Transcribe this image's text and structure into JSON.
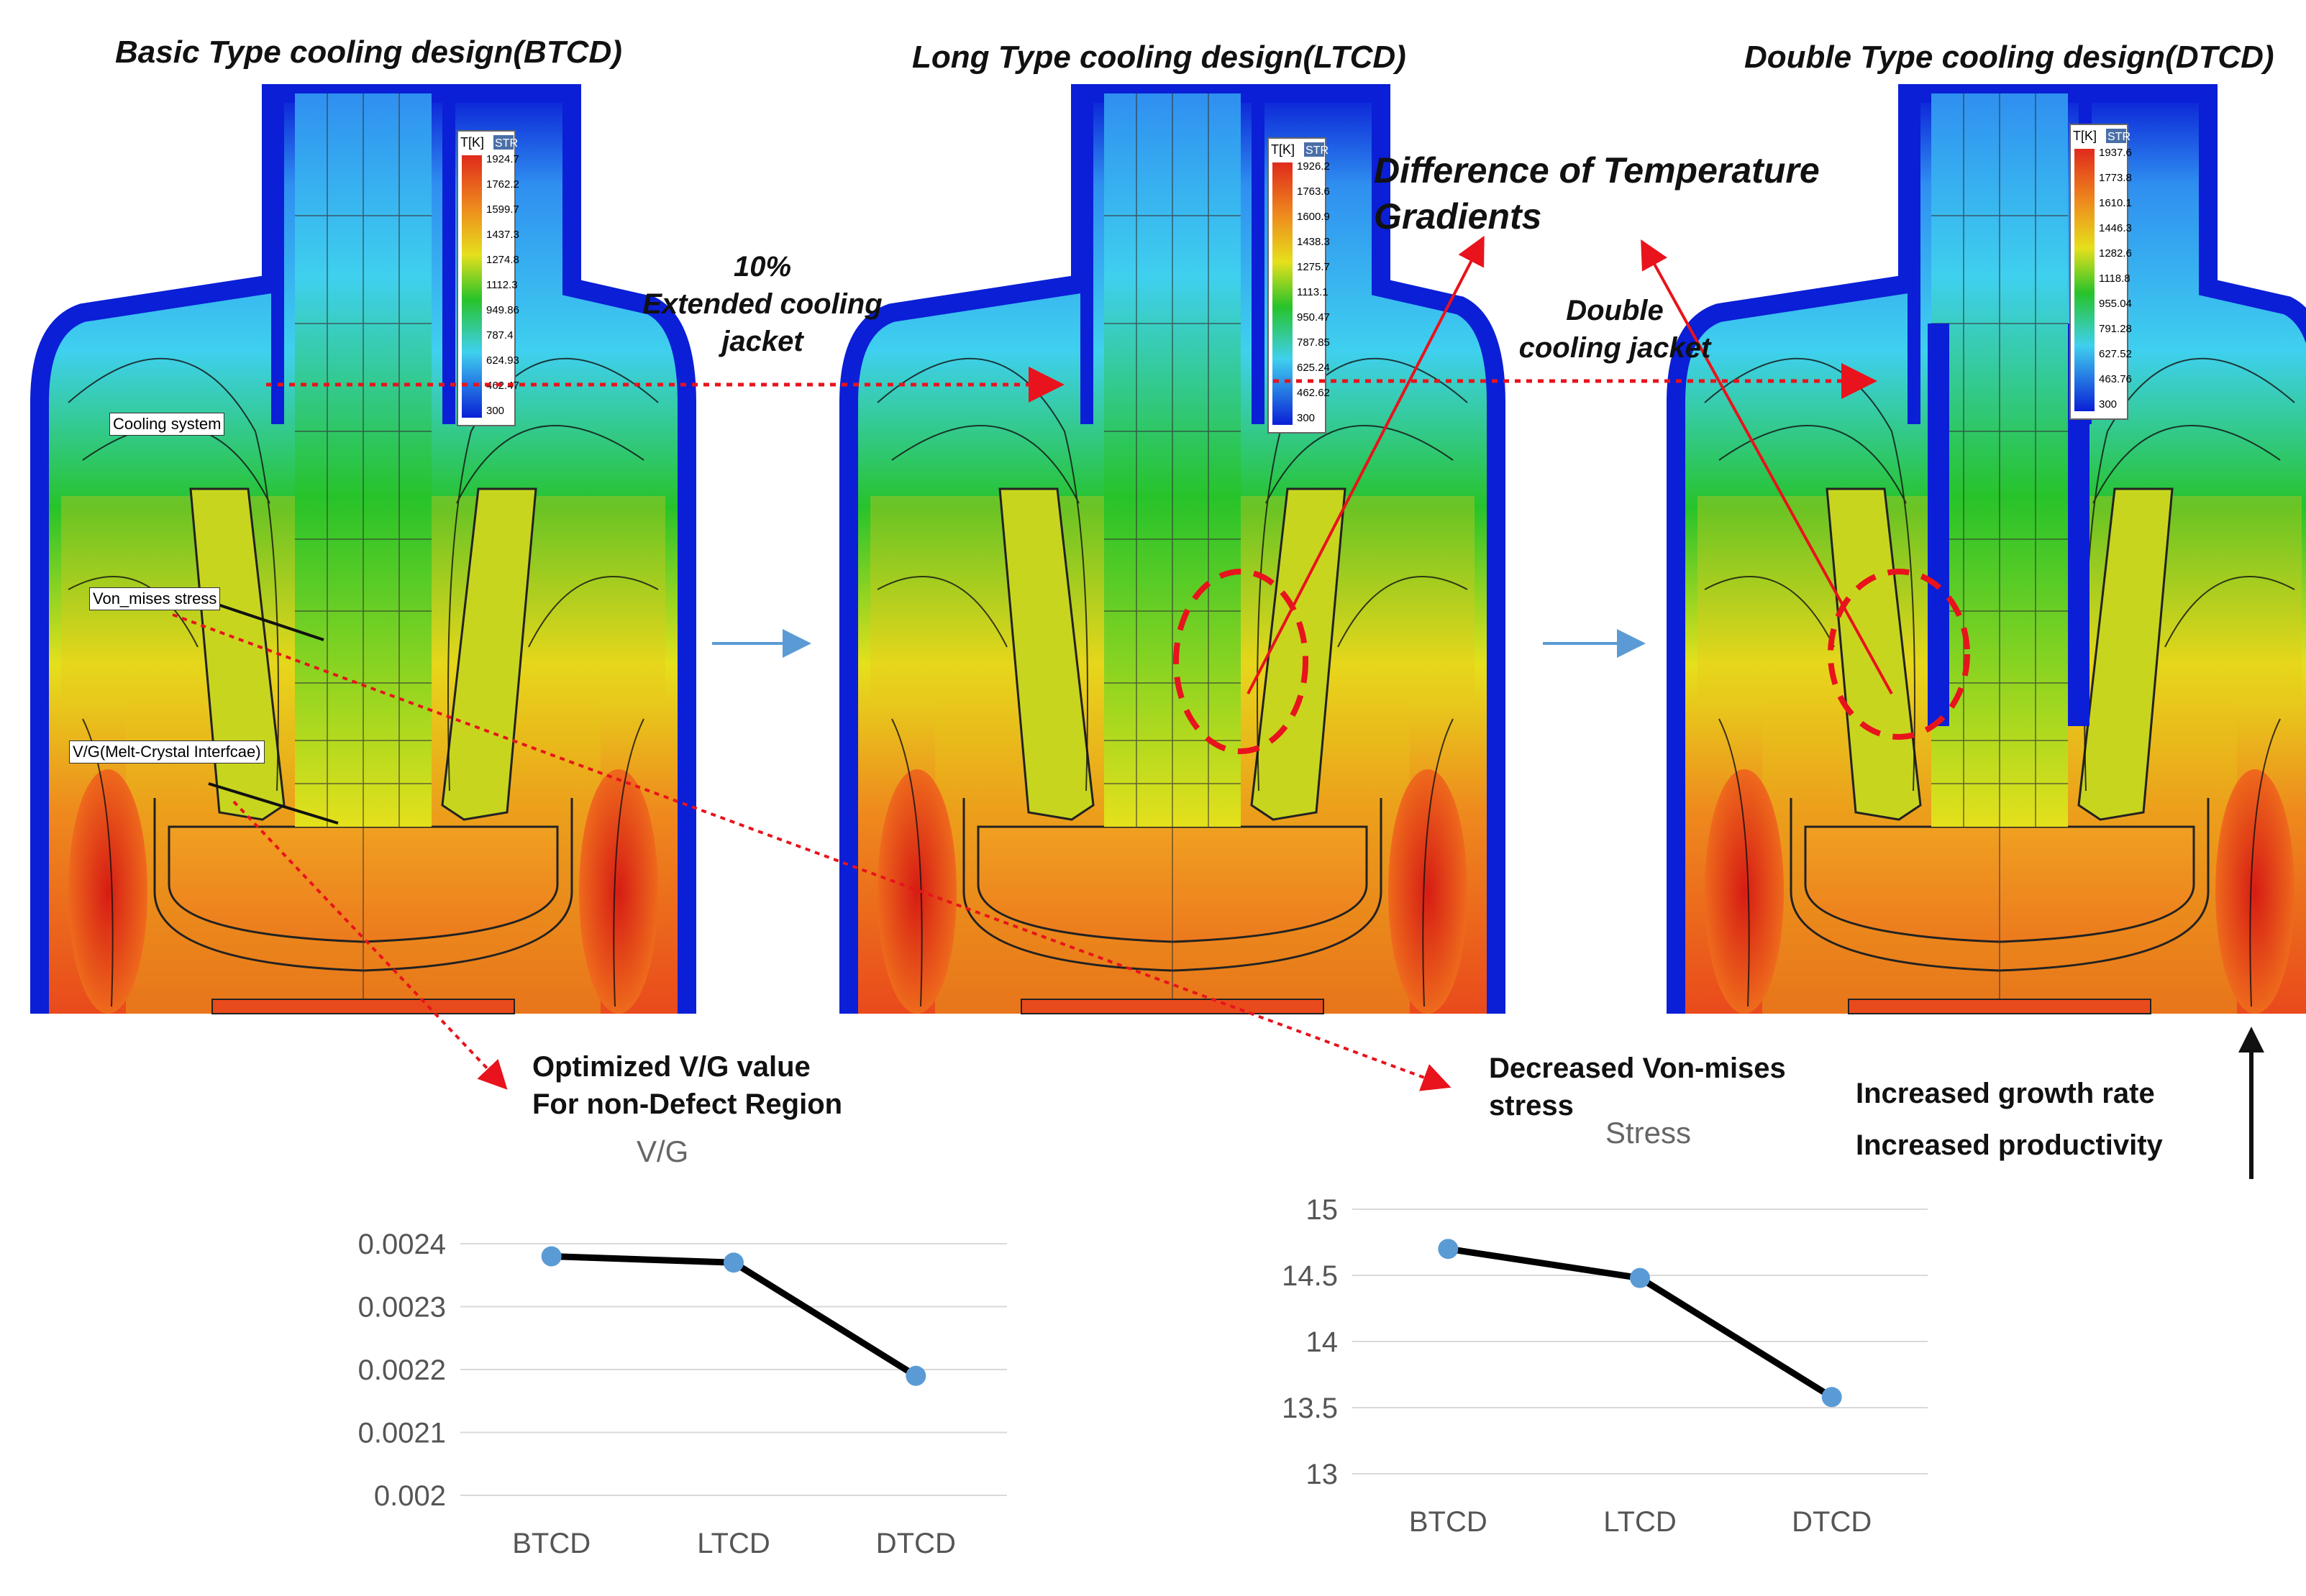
{
  "panels": [
    {
      "title": "Basic Type cooling design(BTCD)",
      "legend": {
        "unit": "T[K]",
        "tag": "STR",
        "values": [
          "1924.7",
          "1762.2",
          "1599.7",
          "1437.3",
          "1274.8",
          "1112.3",
          "949.86",
          "787.4",
          "624.93",
          "462.47",
          "300"
        ]
      }
    },
    {
      "title": "Long Type cooling design(LTCD)",
      "legend": {
        "unit": "T[K]",
        "tag": "STR",
        "values": [
          "1926.2",
          "1763.6",
          "1600.9",
          "1438.3",
          "1275.7",
          "1113.1",
          "950.47",
          "787.85",
          "625.24",
          "462.62",
          "300"
        ]
      }
    },
    {
      "title": "Double Type cooling design(DTCD)",
      "legend": {
        "unit": "T[K]",
        "tag": "STR",
        "values": [
          "1937.6",
          "1773.8",
          "1610.1",
          "1446.3",
          "1282.6",
          "1118.8",
          "955.04",
          "791.28",
          "627.52",
          "463.76",
          "300"
        ]
      }
    }
  ],
  "labels": {
    "cooling_system": "Cooling system",
    "von_mises": "Von_mises stress",
    "vg_interface": "V/G(Melt-Crystal Interfcae)"
  },
  "annotations": {
    "extended_line1": "10%",
    "extended_line2": "Extended cooling",
    "extended_line3": "jacket",
    "double_line1": "Double",
    "double_line2": "cooling jacket",
    "gradient_line1": "Difference of Temperature",
    "gradient_line2": "Gradients",
    "vg_note_line1": "Optimized V/G value",
    "vg_note_line2": "For non-Defect Region",
    "stress_note_line1": "Decreased Von-mises",
    "stress_note_line2": "stress",
    "growth_line1": "Increased growth rate",
    "growth_line2": "Increased productivity"
  },
  "colors": {
    "blue_dark": "#0a1fd6",
    "cyan": "#3fd0ef",
    "green": "#27c32a",
    "yellow": "#e5e01c",
    "orange": "#ee8a1d",
    "red": "#e02a1c",
    "accent_red": "#e8131c",
    "marker": "#5b9bd5",
    "arrow_blue": "#5b9bd5"
  },
  "chart_data": [
    {
      "type": "line",
      "title": "V/G",
      "categories": [
        "BTCD",
        "LTCD",
        "DTCD"
      ],
      "values": [
        0.00238,
        0.00237,
        0.00219
      ],
      "ylim": [
        0.002,
        0.0024
      ],
      "yticks": [
        "0.002",
        "0.0021",
        "0.0022",
        "0.0023",
        "0.0024"
      ],
      "grid": true
    },
    {
      "type": "line",
      "title": "Stress",
      "categories": [
        "BTCD",
        "LTCD",
        "DTCD"
      ],
      "values": [
        14.7,
        14.48,
        13.58
      ],
      "ylim": [
        13,
        15
      ],
      "yticks": [
        "13",
        "13.5",
        "14",
        "14.5",
        "15"
      ],
      "grid": true
    }
  ]
}
